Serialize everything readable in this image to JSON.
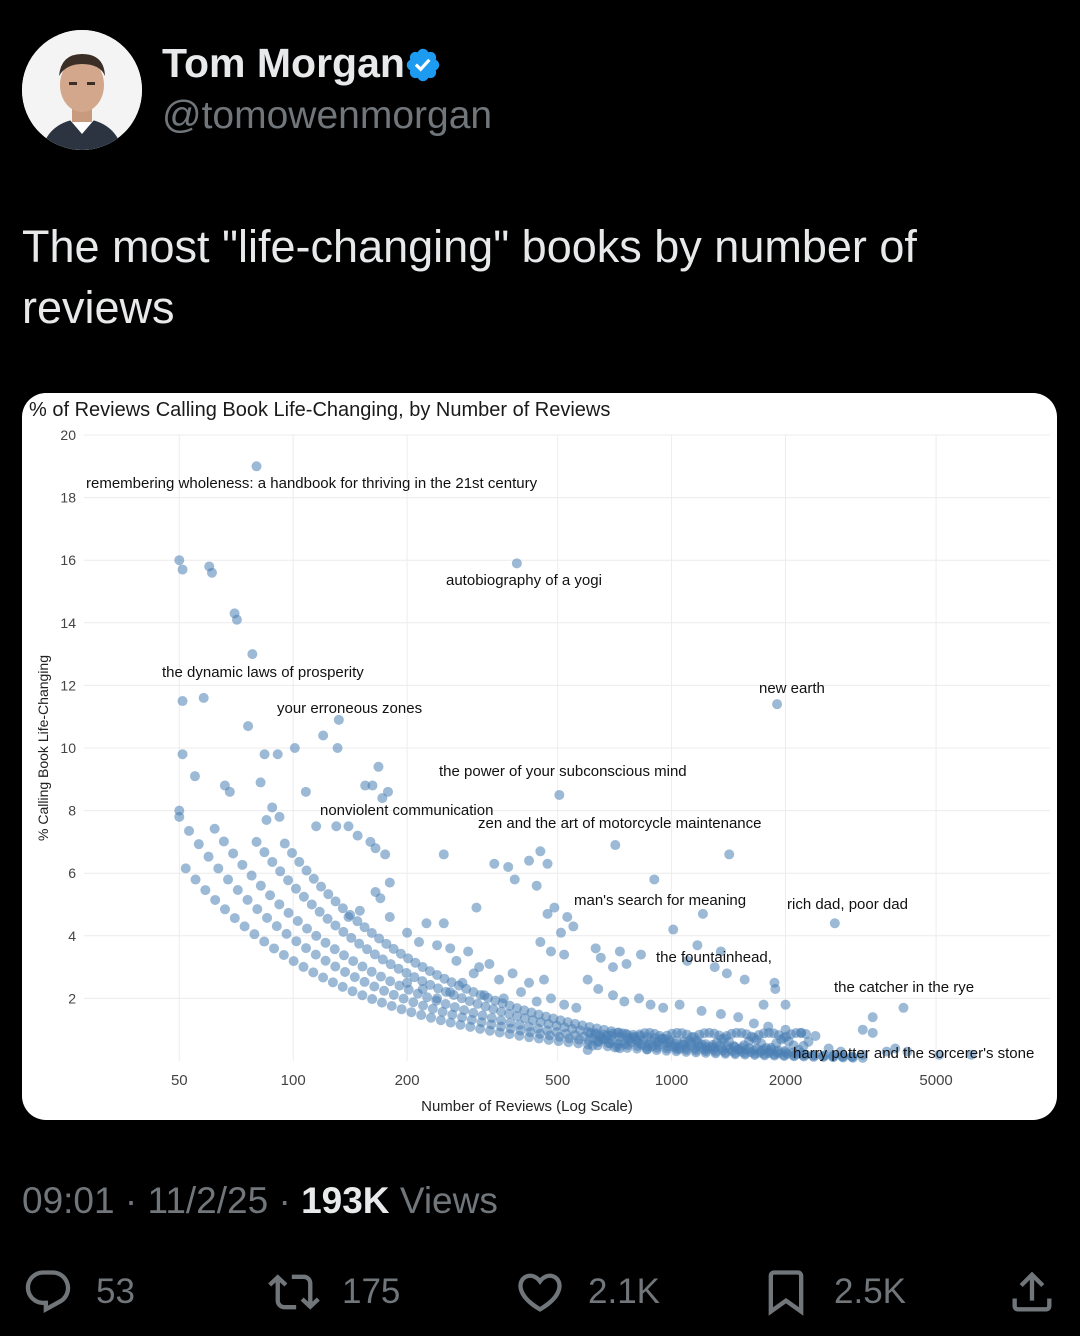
{
  "author": {
    "name": "Tom Morgan",
    "handle": "@tomowenmorgan",
    "verified": true,
    "avatar_icon": "profile-photo"
  },
  "tweet": {
    "text": "The most \"life-changing\" books by number of reviews"
  },
  "meta": {
    "time": "09:01",
    "date": "11/2/25",
    "views_count": "193K",
    "views_label": "Views"
  },
  "actions": {
    "replies": "53",
    "reposts": "175",
    "likes": "2.1K",
    "bookmarks": "2.5K"
  },
  "colors": {
    "background": "#000000",
    "text": "#e7e9ea",
    "muted": "#71767b",
    "verified": "#1d9bf0",
    "points": "#4a80b4"
  },
  "chart_data": {
    "type": "scatter",
    "title": "% of Reviews Calling Book Life-Changing, by Number of Reviews",
    "xlabel": "Number of Reviews (Log Scale)",
    "ylabel": "% Calling Book Life-Changing",
    "x_scale": "log",
    "xlim": [
      28,
      10000
    ],
    "ylim": [
      0,
      20
    ],
    "x_ticks": [
      "50",
      "100",
      "200",
      "500",
      "1000",
      "2000",
      "5000"
    ],
    "y_ticks": [
      "2",
      "4",
      "6",
      "8",
      "10",
      "12",
      "14",
      "16",
      "18",
      "20"
    ],
    "grid": true,
    "labels": [
      {
        "text": "remembering wholeness: a handbook for thriving in the 21st century",
        "x": 80,
        "y": 19.0
      },
      {
        "text": "autobiography of a yogi",
        "x": 390,
        "y": 15.9
      },
      {
        "text": "the dynamic laws of prosperity",
        "x": 78,
        "y": 13.0
      },
      {
        "text": "your erroneous zones",
        "x": 132,
        "y": 10.8
      },
      {
        "text": "new earth",
        "x": 1900,
        "y": 11.4
      },
      {
        "text": "the power of your subconscious mind",
        "x": 505,
        "y": 8.5
      },
      {
        "text": "nonviolent communication",
        "x": 170,
        "y": 8.5
      },
      {
        "text": "zen and the art of motorcycle maintenance",
        "x": 710,
        "y": 6.9
      },
      {
        "text": "man's search for meaning",
        "x": 880,
        "y": 5.7
      },
      {
        "text": "rich dad, poor dad",
        "x": 2700,
        "y": 4.4
      },
      {
        "text": "the fountainhead,",
        "x": 1000,
        "y": 3.4
      },
      {
        "text": "the catcher in the rye",
        "x": 4100,
        "y": 1.7
      },
      {
        "text": "harry potter and the sorcerer's stone",
        "x": 6200,
        "y": 0.2
      }
    ],
    "points": [
      [
        80,
        19.0
      ],
      [
        390,
        15.9
      ],
      [
        50,
        16.0
      ],
      [
        51,
        15.7
      ],
      [
        60,
        15.8
      ],
      [
        61,
        15.6
      ],
      [
        70,
        14.3
      ],
      [
        71,
        14.1
      ],
      [
        78,
        13.0
      ],
      [
        51,
        11.5
      ],
      [
        58,
        11.6
      ],
      [
        76,
        10.7
      ],
      [
        132,
        10.9
      ],
      [
        120,
        10.4
      ],
      [
        101,
        10.0
      ],
      [
        91,
        9.8
      ],
      [
        84,
        9.8
      ],
      [
        131,
        10.0
      ],
      [
        51,
        9.8
      ],
      [
        55,
        9.1
      ],
      [
        66,
        8.8
      ],
      [
        68,
        8.6
      ],
      [
        82,
        8.9
      ],
      [
        108,
        8.6
      ],
      [
        168,
        9.4
      ],
      [
        155,
        8.8
      ],
      [
        162,
        8.8
      ],
      [
        178,
        8.6
      ],
      [
        172,
        8.4
      ],
      [
        505,
        8.5
      ],
      [
        50,
        8.0
      ],
      [
        88,
        8.1
      ],
      [
        92,
        7.8
      ],
      [
        85,
        7.7
      ],
      [
        115,
        7.5
      ],
      [
        130,
        7.5
      ],
      [
        140,
        7.5
      ],
      [
        148,
        7.2
      ],
      [
        160,
        7.0
      ],
      [
        165,
        6.8
      ],
      [
        175,
        6.6
      ],
      [
        710,
        6.9
      ],
      [
        1420,
        6.6
      ],
      [
        250,
        6.6
      ],
      [
        340,
        6.3
      ],
      [
        370,
        6.2
      ],
      [
        420,
        6.4
      ],
      [
        450,
        6.7
      ],
      [
        470,
        6.3
      ],
      [
        385,
        5.8
      ],
      [
        440,
        5.6
      ],
      [
        900,
        5.8
      ],
      [
        490,
        4.9
      ],
      [
        530,
        4.6
      ],
      [
        470,
        4.7
      ],
      [
        305,
        4.9
      ],
      [
        1210,
        4.7
      ],
      [
        2700,
        4.4
      ],
      [
        180,
        5.7
      ],
      [
        170,
        5.2
      ],
      [
        165,
        5.4
      ],
      [
        150,
        4.8
      ],
      [
        140,
        4.6
      ],
      [
        180,
        4.6
      ],
      [
        200,
        4.1
      ],
      [
        225,
        4.4
      ],
      [
        250,
        4.4
      ],
      [
        215,
        3.8
      ],
      [
        240,
        3.7
      ],
      [
        260,
        3.6
      ],
      [
        450,
        3.8
      ],
      [
        510,
        4.1
      ],
      [
        550,
        4.3
      ],
      [
        1010,
        4.2
      ],
      [
        1170,
        3.7
      ],
      [
        1350,
        3.5
      ],
      [
        630,
        3.6
      ],
      [
        730,
        3.5
      ],
      [
        480,
        3.5
      ],
      [
        520,
        3.4
      ],
      [
        650,
        3.3
      ],
      [
        700,
        3.0
      ],
      [
        760,
        3.1
      ],
      [
        830,
        3.4
      ],
      [
        1100,
        3.2
      ],
      [
        1300,
        3.0
      ],
      [
        1400,
        2.8
      ],
      [
        1560,
        2.6
      ],
      [
        1870,
        2.5
      ],
      [
        1880,
        2.3
      ],
      [
        1900,
        11.4
      ],
      [
        3400,
        1.4
      ],
      [
        3200,
        1.0
      ],
      [
        3400,
        0.9
      ],
      [
        4100,
        1.7
      ],
      [
        2000,
        1.8
      ],
      [
        1750,
        1.8
      ],
      [
        4200,
        0.3
      ],
      [
        5100,
        0.2
      ],
      [
        6200,
        0.2
      ],
      [
        3700,
        0.3
      ],
      [
        3900,
        0.4
      ],
      [
        2800,
        0.3
      ],
      [
        3200,
        0.2
      ],
      [
        2600,
        0.4
      ],
      [
        600,
        2.6
      ],
      [
        640,
        2.3
      ],
      [
        700,
        2.1
      ],
      [
        750,
        1.9
      ],
      [
        820,
        2.0
      ],
      [
        880,
        1.8
      ],
      [
        950,
        1.7
      ],
      [
        1050,
        1.8
      ],
      [
        1200,
        1.6
      ],
      [
        1350,
        1.5
      ],
      [
        1500,
        1.4
      ],
      [
        1650,
        1.2
      ],
      [
        1800,
        1.1
      ],
      [
        2000,
        1.0
      ],
      [
        2200,
        0.9
      ],
      [
        2400,
        0.8
      ],
      [
        380,
        2.8
      ],
      [
        420,
        2.5
      ],
      [
        460,
        2.6
      ],
      [
        350,
        2.6
      ],
      [
        330,
        3.1
      ],
      [
        310,
        3.0
      ],
      [
        300,
        2.8
      ],
      [
        280,
        2.5
      ],
      [
        260,
        2.2
      ],
      [
        240,
        2.0
      ],
      [
        220,
        2.3
      ],
      [
        200,
        2.5
      ],
      [
        270,
        3.2
      ],
      [
        290,
        3.5
      ],
      [
        320,
        2.1
      ],
      [
        360,
        2.0
      ],
      [
        400,
        2.2
      ],
      [
        440,
        1.9
      ],
      [
        480,
        2.0
      ],
      [
        520,
        1.8
      ],
      [
        560,
        1.7
      ]
    ],
    "curves": [
      {
        "k": 390,
        "from": 50,
        "to": 3000
      },
      {
        "k": 320,
        "from": 52,
        "to": 3200
      },
      {
        "k": 460,
        "from": 62,
        "to": 3000
      },
      {
        "k": 560,
        "from": 80,
        "to": 2200
      },
      {
        "k": 660,
        "from": 95,
        "to": 2000
      }
    ]
  }
}
